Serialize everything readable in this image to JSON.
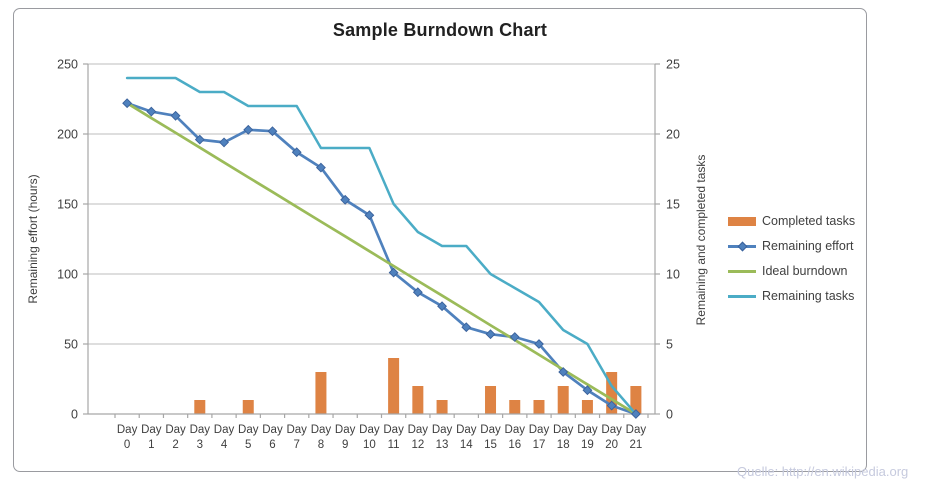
{
  "title": "Sample Burndown Chart",
  "source_note": "Quelle: http://en.wikipedia.org",
  "colors": {
    "completed_tasks": "#de8344",
    "remaining_effort": "#4f81bd",
    "marker_edge": "#3a619b",
    "ideal_burndown": "#9bbb59",
    "remaining_tasks": "#4bacc6",
    "gridline": "#c9c9c9",
    "axis_line": "#a6a6a6",
    "tick_text": "#3f3f3f"
  },
  "left_axis": {
    "title": "Remaining effort (hours)",
    "ticks": [
      0,
      50,
      100,
      150,
      200,
      250
    ]
  },
  "right_axis": {
    "title": "Remaining and completed tasks",
    "ticks": [
      0,
      5,
      10,
      15,
      20,
      25
    ]
  },
  "x_axis": {
    "label_word": "Day",
    "days": [
      "0",
      "1",
      "2",
      "3",
      "4",
      "5",
      "6",
      "7",
      "8",
      "9",
      "10",
      "11",
      "12",
      "13",
      "14",
      "15",
      "16",
      "17",
      "18",
      "19",
      "20",
      "21"
    ]
  },
  "legend": {
    "items": [
      {
        "label": "Completed tasks"
      },
      {
        "label": "Remaining effort"
      },
      {
        "label": "Ideal burndown"
      },
      {
        "label": "Remaining tasks"
      }
    ]
  },
  "chart_data": {
    "type": "bar",
    "subtype": "combo-bar-line",
    "title": "Sample Burndown Chart",
    "categories": [
      "Day 0",
      "Day 1",
      "Day 2",
      "Day 3",
      "Day 4",
      "Day 5",
      "Day 6",
      "Day 7",
      "Day 8",
      "Day 9",
      "Day 10",
      "Day 11",
      "Day 12",
      "Day 13",
      "Day 14",
      "Day 15",
      "Day 16",
      "Day 17",
      "Day 18",
      "Day 19",
      "Day 20",
      "Day 21"
    ],
    "left_ylabel": "Remaining effort (hours)",
    "right_ylabel": "Remaining and completed tasks",
    "left_ylim": [
      0,
      250
    ],
    "right_ylim": [
      0,
      25
    ],
    "grid": true,
    "legend_position": "right",
    "series": [
      {
        "name": "Completed tasks",
        "type": "bar",
        "axis": "right",
        "values": [
          0,
          0,
          0,
          1,
          0,
          1,
          0,
          0,
          3,
          0,
          0,
          4,
          2,
          1,
          0,
          2,
          1,
          1,
          2,
          1,
          3,
          2
        ]
      },
      {
        "name": "Remaining effort",
        "type": "line",
        "marker": "diamond",
        "axis": "left",
        "values": [
          222,
          216,
          213,
          196,
          194,
          203,
          202,
          187,
          176,
          153,
          142,
          101,
          87,
          77,
          62,
          57,
          55,
          50,
          30,
          17,
          6,
          0
        ]
      },
      {
        "name": "Ideal burndown",
        "type": "line",
        "marker": "none",
        "axis": "left",
        "values": [
          222,
          211.4,
          200.9,
          190.3,
          179.7,
          169.1,
          158.6,
          148,
          137.4,
          126.9,
          116.3,
          105.7,
          95.1,
          84.6,
          74,
          63.4,
          52.9,
          42.3,
          31.7,
          21.1,
          10.6,
          0
        ]
      },
      {
        "name": "Remaining tasks",
        "type": "line",
        "marker": "none",
        "axis": "right",
        "values": [
          24,
          24,
          24,
          23,
          23,
          22,
          22,
          22,
          19,
          19,
          19,
          15,
          13,
          12,
          12,
          10,
          9,
          8,
          6,
          5,
          2,
          0
        ]
      }
    ]
  }
}
